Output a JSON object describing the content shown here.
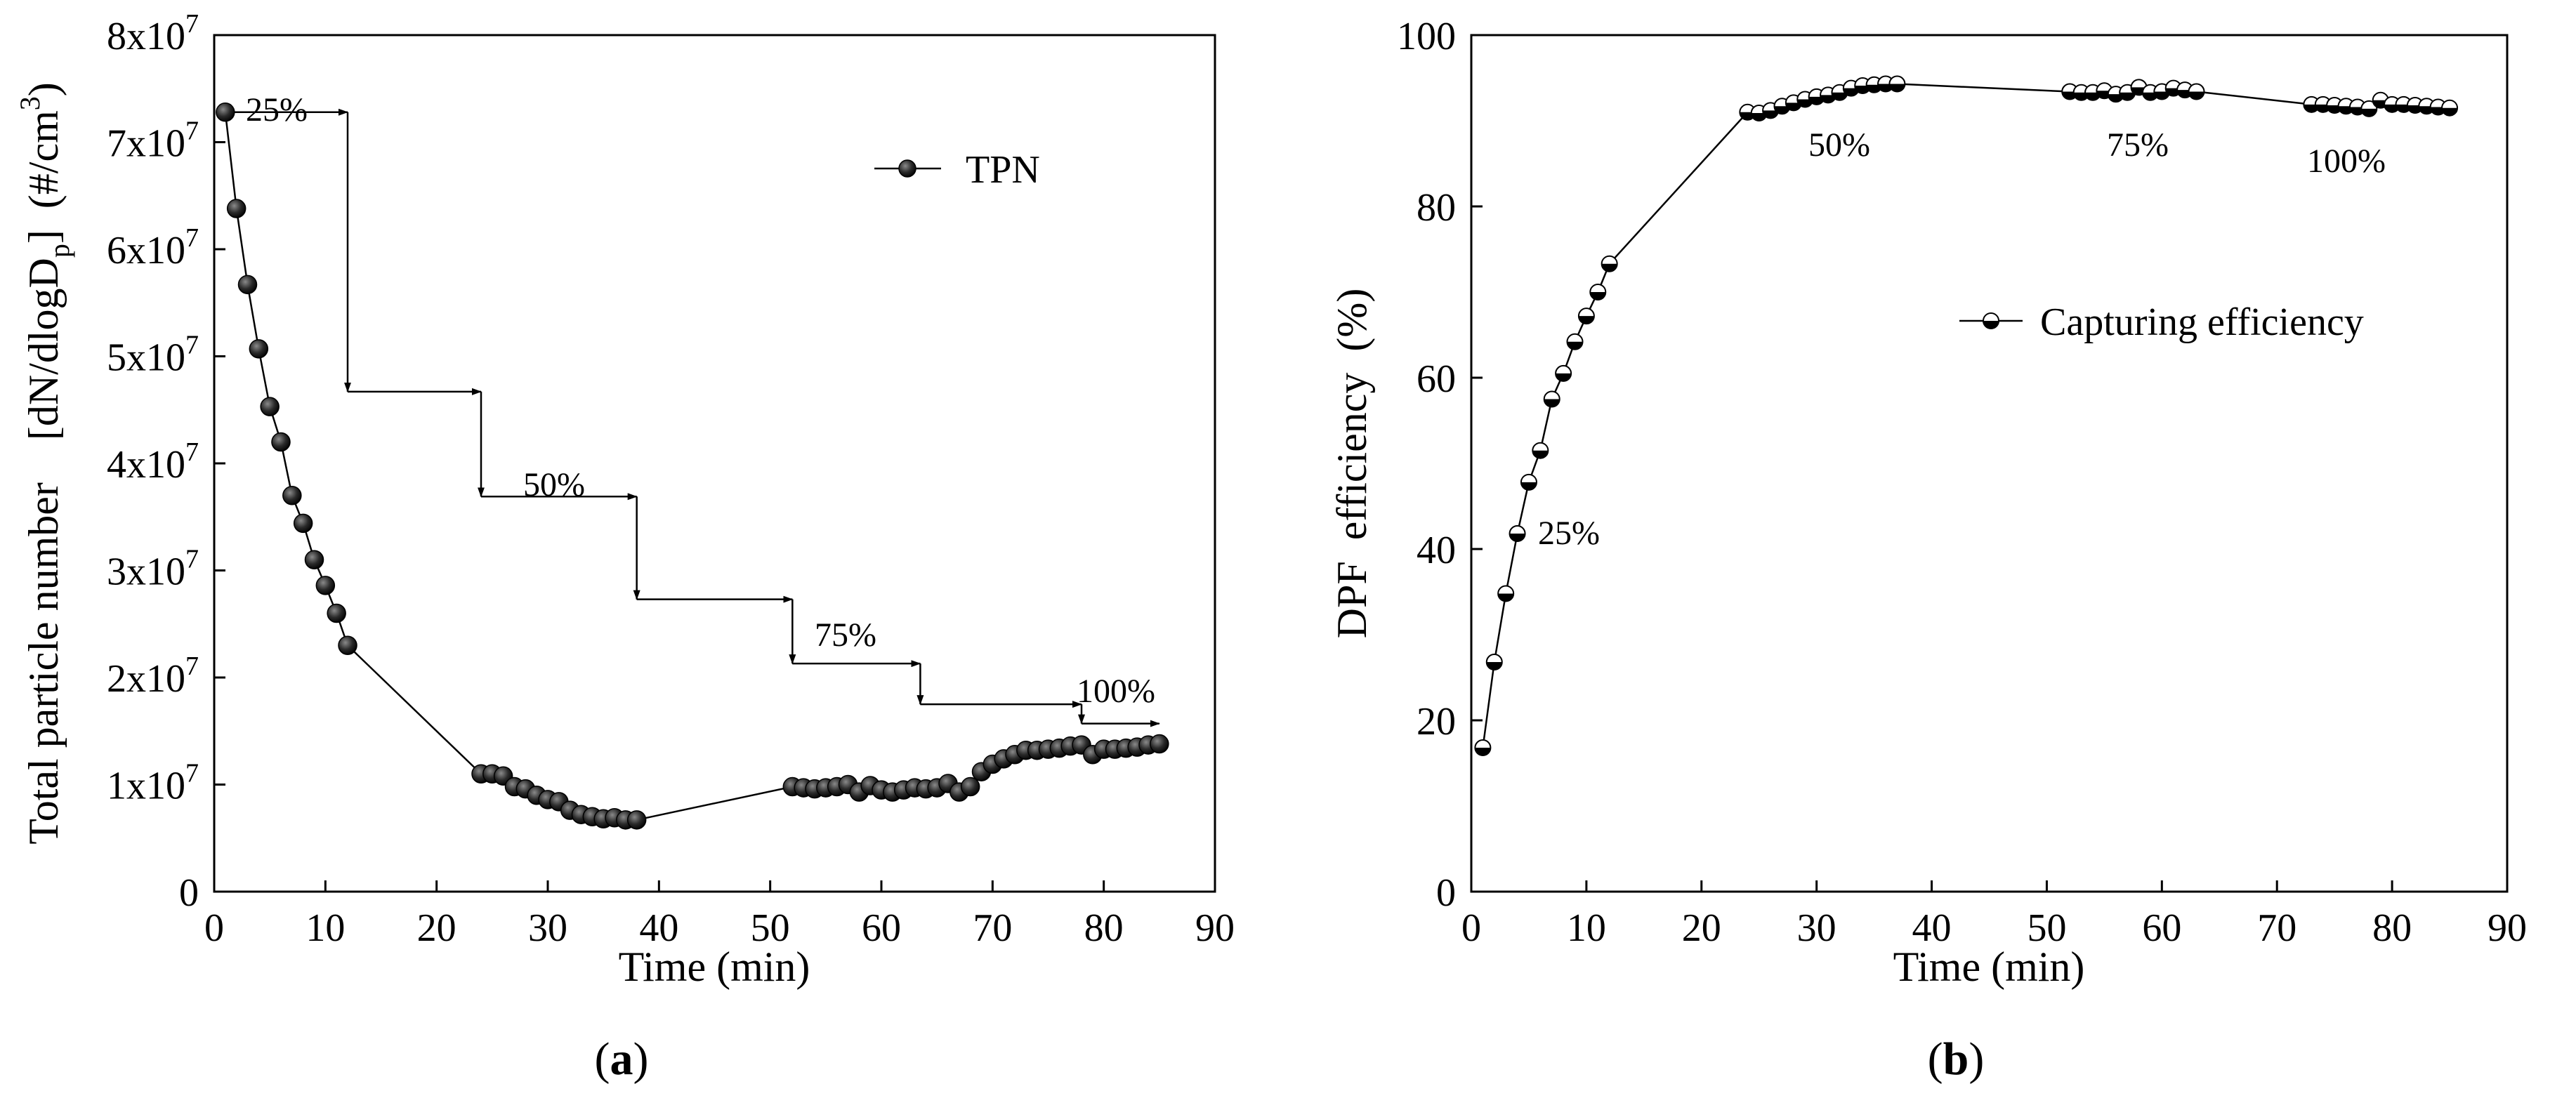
{
  "colors": {
    "line": "#000000",
    "marker": "#1a1a1a",
    "background": "#ffffff"
  },
  "chart_data": [
    {
      "type": "line",
      "panel_label": {
        "open": "(",
        "letter": "a",
        "close": ")"
      },
      "xlabel": "Time (min)",
      "ylabel": {
        "base": "Total particle number [dN/dlogD",
        "sub": "p",
        "mid": "] (#/cm",
        "sup": "3",
        "end": ")"
      },
      "xlim": [
        0,
        90
      ],
      "ylim": [
        0,
        80000000
      ],
      "xticks": [
        {
          "value": 0,
          "label": "0"
        },
        {
          "value": 10,
          "label": "10"
        },
        {
          "value": 20,
          "label": "20"
        },
        {
          "value": 30,
          "label": "30"
        },
        {
          "value": 40,
          "label": "40"
        },
        {
          "value": 50,
          "label": "50"
        },
        {
          "value": 60,
          "label": "60"
        },
        {
          "value": 70,
          "label": "70"
        },
        {
          "value": 80,
          "label": "80"
        },
        {
          "value": 90,
          "label": "90"
        }
      ],
      "yticks": [
        {
          "value": 0,
          "mant": "0",
          "exp": ""
        },
        {
          "value": 10000000,
          "mant": "1x10",
          "exp": "7"
        },
        {
          "value": 20000000,
          "mant": "2x10",
          "exp": "7"
        },
        {
          "value": 30000000,
          "mant": "3x10",
          "exp": "7"
        },
        {
          "value": 40000000,
          "mant": "4x10",
          "exp": "7"
        },
        {
          "value": 50000000,
          "mant": "5x10",
          "exp": "7"
        },
        {
          "value": 60000000,
          "mant": "6x10",
          "exp": "7"
        },
        {
          "value": 70000000,
          "mant": "7x10",
          "exp": "7"
        },
        {
          "value": 80000000,
          "mant": "8x10",
          "exp": "7"
        }
      ],
      "legend": {
        "label": "TPN",
        "position": "top-right"
      },
      "series": [
        {
          "name": "TPN",
          "x": [
            1,
            2,
            3,
            4,
            5,
            6,
            7,
            8,
            9,
            10,
            11,
            12,
            24,
            25,
            26,
            27,
            28,
            29,
            30,
            31,
            32,
            33,
            34,
            35,
            36,
            37,
            38,
            52,
            53,
            54,
            55,
            56,
            57,
            58,
            59,
            60,
            61,
            62,
            63,
            64,
            65,
            66,
            67,
            68,
            69,
            70,
            71,
            72,
            73,
            74,
            75,
            76,
            77,
            78,
            79,
            80,
            81,
            82,
            83,
            84,
            85
          ],
          "y": [
            72800000,
            63800000,
            56700000,
            50700000,
            45300000,
            42000000,
            37000000,
            34400000,
            31000000,
            28600000,
            26000000,
            23000000,
            11000000,
            11000000,
            10800000,
            9800000,
            9600000,
            9000000,
            8600000,
            8400000,
            7600000,
            7200000,
            7000000,
            6800000,
            6900000,
            6700000,
            6700000,
            9800000,
            9700000,
            9600000,
            9700000,
            9800000,
            10000000,
            9300000,
            9900000,
            9500000,
            9300000,
            9500000,
            9700000,
            9600000,
            9700000,
            10100000,
            9300000,
            9800000,
            11200000,
            11900000,
            12400000,
            12800000,
            13200000,
            13200000,
            13300000,
            13400000,
            13600000,
            13700000,
            12800000,
            13300000,
            13300000,
            13400000,
            13500000,
            13700000,
            13800000
          ]
        }
      ],
      "annotations": [
        {
          "text": "25%"
        },
        {
          "text": "50%"
        },
        {
          "text": "75%"
        },
        {
          "text": "100%"
        }
      ],
      "arrows": [
        {
          "x1": 1,
          "y1": 72800000,
          "x2": 12,
          "y2": 72800000
        },
        {
          "x1": 12,
          "y1": 72800000,
          "x2": 12,
          "y2": 46700000
        },
        {
          "x1": 12,
          "y1": 46700000,
          "x2": 24,
          "y2": 46700000
        },
        {
          "x1": 24,
          "y1": 46700000,
          "x2": 24,
          "y2": 36900000
        },
        {
          "x1": 24,
          "y1": 36900000,
          "x2": 38,
          "y2": 36900000
        },
        {
          "x1": 38,
          "y1": 36900000,
          "x2": 38,
          "y2": 27300000
        },
        {
          "x1": 38,
          "y1": 27300000,
          "x2": 52,
          "y2": 27300000
        },
        {
          "x1": 52,
          "y1": 27300000,
          "x2": 52,
          "y2": 21300000
        },
        {
          "x1": 52,
          "y1": 21300000,
          "x2": 63.5,
          "y2": 21300000
        },
        {
          "x1": 63.5,
          "y1": 21300000,
          "x2": 63.5,
          "y2": 17500000
        },
        {
          "x1": 63.5,
          "y1": 17500000,
          "x2": 78,
          "y2": 17500000
        },
        {
          "x1": 78,
          "y1": 17500000,
          "x2": 78,
          "y2": 15700000
        },
        {
          "x1": 78,
          "y1": 15700000,
          "x2": 85,
          "y2": 15700000
        }
      ]
    },
    {
      "type": "line",
      "panel_label": {
        "open": "(",
        "letter": "b",
        "close": ")"
      },
      "xlabel": "Time (min)",
      "ylabel": {
        "text": "DPF efficiency (%)"
      },
      "xlim": [
        0,
        90
      ],
      "ylim": [
        0,
        100
      ],
      "xticks": [
        {
          "value": 0,
          "label": "0"
        },
        {
          "value": 10,
          "label": "10"
        },
        {
          "value": 20,
          "label": "20"
        },
        {
          "value": 30,
          "label": "30"
        },
        {
          "value": 40,
          "label": "40"
        },
        {
          "value": 50,
          "label": "50"
        },
        {
          "value": 60,
          "label": "60"
        },
        {
          "value": 70,
          "label": "70"
        },
        {
          "value": 80,
          "label": "80"
        },
        {
          "value": 90,
          "label": "90"
        }
      ],
      "yticks": [
        {
          "value": 0,
          "label": "0"
        },
        {
          "value": 20,
          "label": "20"
        },
        {
          "value": 40,
          "label": "40"
        },
        {
          "value": 60,
          "label": "60"
        },
        {
          "value": 80,
          "label": "80"
        },
        {
          "value": 100,
          "label": "100"
        }
      ],
      "legend": {
        "label": "Capturing efficiency",
        "position": "center-right"
      },
      "series": [
        {
          "name": "Capturing efficiency",
          "x": [
            1,
            2,
            3,
            4,
            5,
            6,
            7,
            8,
            9,
            10,
            11,
            12,
            24,
            25,
            26,
            27,
            28,
            29,
            30,
            31,
            32,
            33,
            34,
            35,
            36,
            37,
            52,
            53,
            54,
            55,
            56,
            57,
            58,
            59,
            60,
            61,
            62,
            63,
            73,
            74,
            75,
            76,
            77,
            78,
            79,
            80,
            81,
            82,
            83,
            84,
            85
          ],
          "y": [
            16.8,
            26.8,
            34.8,
            41.8,
            47.8,
            51.5,
            57.5,
            60.5,
            64.2,
            67.2,
            70.0,
            73.3,
            91.0,
            90.9,
            91.2,
            91.7,
            92.1,
            92.5,
            92.8,
            93.0,
            93.3,
            93.8,
            94.1,
            94.2,
            94.3,
            94.3,
            93.4,
            93.3,
            93.3,
            93.5,
            93.1,
            93.3,
            93.9,
            93.3,
            93.4,
            93.8,
            93.6,
            93.4,
            91.9,
            91.9,
            91.8,
            91.7,
            91.6,
            91.4,
            92.4,
            91.9,
            91.9,
            91.8,
            91.7,
            91.6,
            91.5
          ]
        }
      ],
      "annotations": [
        {
          "text": "25%"
        },
        {
          "text": "50%"
        },
        {
          "text": "75%"
        },
        {
          "text": "100%"
        }
      ]
    }
  ]
}
